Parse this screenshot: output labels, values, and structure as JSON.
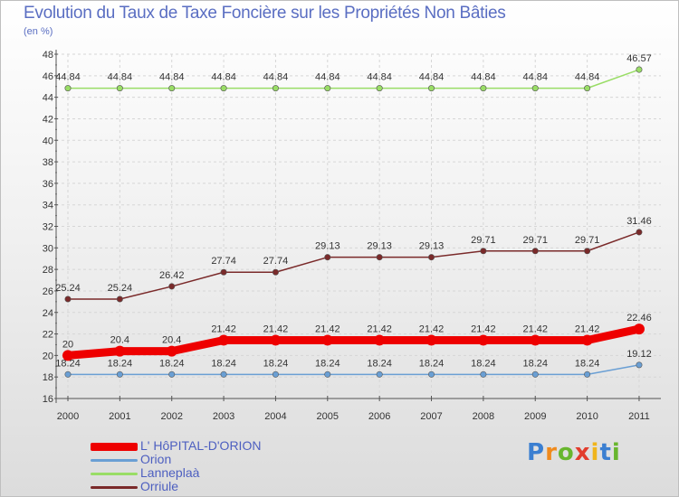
{
  "title": "Evolution du Taux de Taxe Foncière sur les Propriétés Non Bâties",
  "subtitle": "(en %)",
  "chart_data": {
    "type": "line",
    "title": "Evolution du Taux de Taxe Foncière sur les Propriétés Non Bâties",
    "ylabel": "(en %)",
    "xlabel": "",
    "ylim": [
      16,
      48
    ],
    "yticks": [
      16,
      18,
      20,
      22,
      24,
      26,
      28,
      30,
      32,
      34,
      36,
      38,
      40,
      42,
      44,
      46,
      48
    ],
    "categories": [
      "2000",
      "2001",
      "2002",
      "2003",
      "2004",
      "2005",
      "2006",
      "2007",
      "2008",
      "2009",
      "2010",
      "2011"
    ],
    "grid": true,
    "series": [
      {
        "name": "L' HôPITAL-D'ORION",
        "color": "#ee0000",
        "values": [
          20,
          20.4,
          20.4,
          21.42,
          21.42,
          21.42,
          21.42,
          21.42,
          21.42,
          21.42,
          21.42,
          22.46
        ],
        "labels": [
          "20",
          "20.4",
          "20.4",
          "21.42",
          "21.42",
          "21.42",
          "21.42",
          "21.42",
          "21.42",
          "21.42",
          "21.42",
          "22.46"
        ]
      },
      {
        "name": "Orion",
        "color": "#6a9fd4",
        "values": [
          18.24,
          18.24,
          18.24,
          18.24,
          18.24,
          18.24,
          18.24,
          18.24,
          18.24,
          18.24,
          18.24,
          19.12
        ],
        "labels": [
          "18.24",
          "18.24",
          "18.24",
          "18.24",
          "18.24",
          "18.24",
          "18.24",
          "18.24",
          "18.24",
          "18.24",
          "18.24",
          "19.12"
        ]
      },
      {
        "name": "Lanneplaà",
        "color": "#99dd66",
        "values": [
          44.84,
          44.84,
          44.84,
          44.84,
          44.84,
          44.84,
          44.84,
          44.84,
          44.84,
          44.84,
          44.84,
          46.57
        ],
        "labels": [
          "44.84",
          "44.84",
          "44.84",
          "44.84",
          "44.84",
          "44.84",
          "44.84",
          "44.84",
          "44.84",
          "44.84",
          "44.84",
          "46.57"
        ]
      },
      {
        "name": "Orriule",
        "color": "#7a2a2a",
        "values": [
          25.24,
          25.24,
          26.42,
          27.74,
          27.74,
          29.13,
          29.13,
          29.13,
          29.71,
          29.71,
          29.71,
          31.46
        ],
        "labels": [
          "25.24",
          "25.24",
          "26.42",
          "27.74",
          "27.74",
          "29.13",
          "29.13",
          "29.13",
          "29.71",
          "29.71",
          "29.71",
          "31.46"
        ]
      }
    ]
  },
  "legend": [
    {
      "label": "L' HôPITAL-D'ORION",
      "color": "#ee0000"
    },
    {
      "label": "Orion",
      "color": "#6a9fd4"
    },
    {
      "label": "Lanneplaà",
      "color": "#99dd66"
    },
    {
      "label": "Orriule",
      "color": "#7a2a2a"
    }
  ],
  "logo": {
    "letters": [
      "P",
      "r",
      "o",
      "x",
      "i",
      "t",
      "i"
    ],
    "colors": [
      "#3b7fd1",
      "#f08a1c",
      "#68b62e",
      "#e23d2d",
      "#f0b51c",
      "#3b7fd1",
      "#68b62e"
    ]
  }
}
